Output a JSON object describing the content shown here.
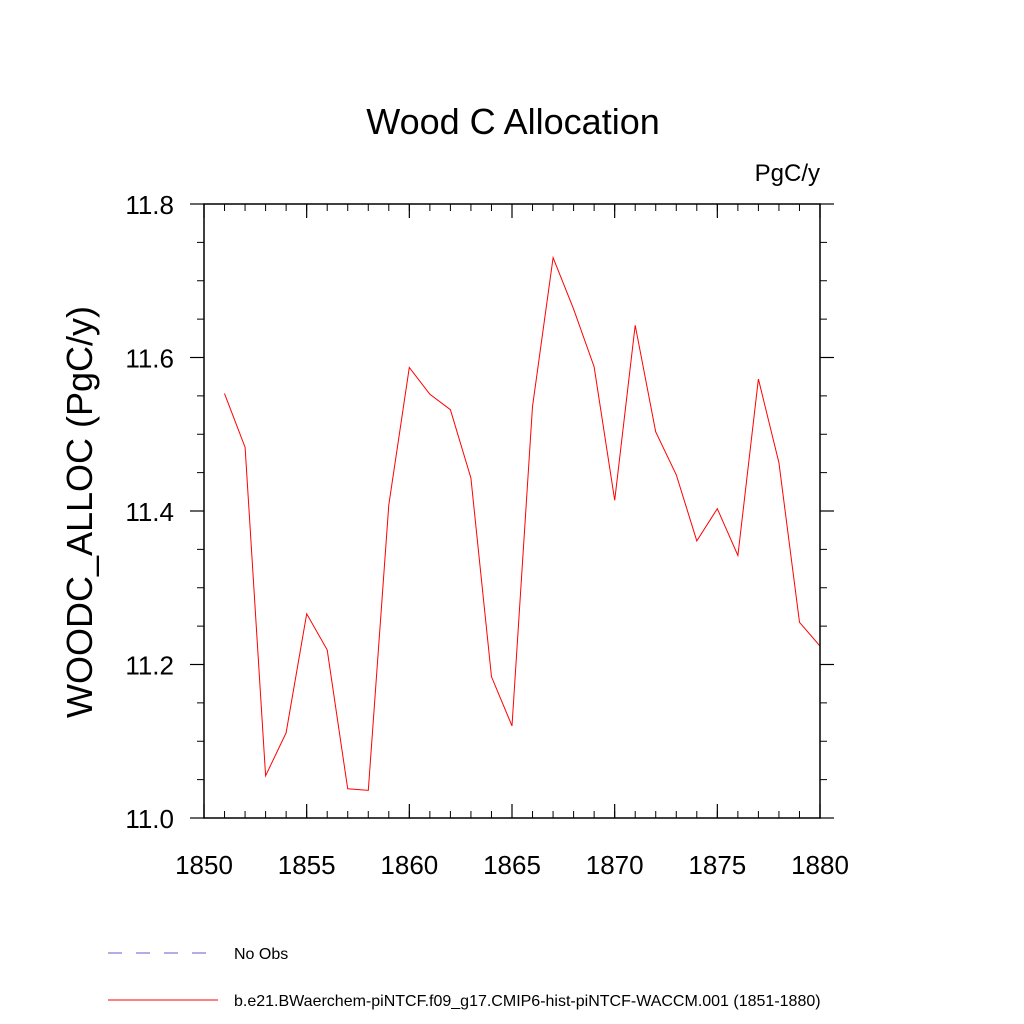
{
  "chart_data": {
    "type": "line",
    "title": "Wood C Allocation",
    "units_label": "PgC/y",
    "xlabel": "",
    "ylabel": "WOODC_ALLOC  (PgC/y)",
    "xlim": [
      1850,
      1880
    ],
    "ylim": [
      11.0,
      11.8
    ],
    "x_ticks": [
      1850,
      1855,
      1860,
      1865,
      1870,
      1875,
      1880
    ],
    "x_tick_labels": [
      "1850",
      "1855",
      "1860",
      "1865",
      "1870",
      "1875",
      "1880"
    ],
    "y_ticks": [
      11.0,
      11.2,
      11.4,
      11.6,
      11.8
    ],
    "y_tick_labels": [
      "11.0",
      "11.2",
      "11.4",
      "11.6",
      "11.8"
    ],
    "x_minor_step": 1,
    "y_minor_step": 0.05,
    "grid": false,
    "legend_position": "bottom-left, below plot",
    "series": [
      {
        "name": "b.e21.BWaerchem-piNTCF.f09_g17.CMIP6-hist-piNTCF-WACCM.001 (1851-1880)",
        "color": "#ff0000",
        "dash": "solid",
        "x": [
          1851,
          1852,
          1853,
          1854,
          1855,
          1856,
          1857,
          1858,
          1859,
          1860,
          1861,
          1862,
          1863,
          1864,
          1865,
          1866,
          1867,
          1868,
          1869,
          1870,
          1871,
          1872,
          1873,
          1874,
          1875,
          1876,
          1877,
          1878,
          1879,
          1880
        ],
        "y": [
          11.553,
          11.483,
          11.055,
          11.111,
          11.266,
          11.219,
          11.038,
          11.036,
          11.408,
          11.587,
          11.552,
          11.532,
          11.443,
          11.184,
          11.12,
          11.536,
          11.73,
          11.663,
          11.588,
          11.414,
          11.642,
          11.503,
          11.447,
          11.361,
          11.403,
          11.342,
          11.572,
          11.463,
          11.255,
          11.224
        ]
      }
    ],
    "legend": [
      {
        "label": "No Obs",
        "color": "#6a5acd",
        "dash": "dashed"
      },
      {
        "label": "b.e21.BWaerchem-piNTCF.f09_g17.CMIP6-hist-piNTCF-WACCM.001 (1851-1880)",
        "color": "#ff0000",
        "dash": "solid"
      }
    ]
  }
}
